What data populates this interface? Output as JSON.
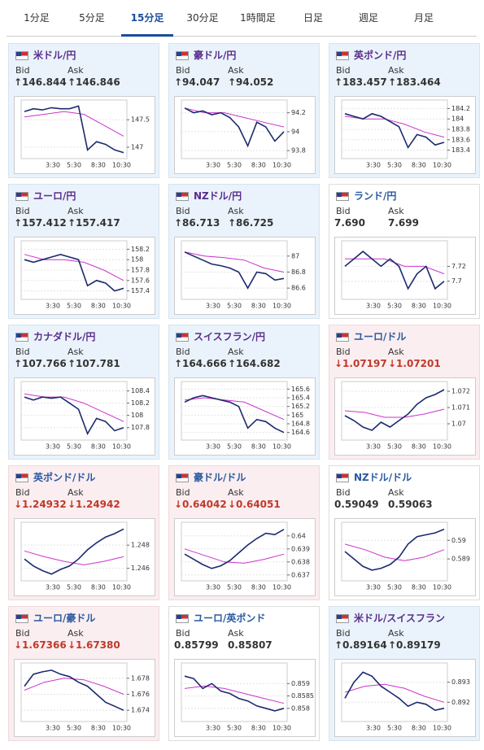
{
  "tabs": [
    "1分足",
    "5分足",
    "15分足",
    "30分足",
    "1時間足",
    "日足",
    "週足",
    "月足"
  ],
  "active_tab": 2,
  "labels": {
    "bid": "Bid",
    "ask": "Ask"
  },
  "time_labels": [
    "3:30",
    "5:30",
    "8:30",
    "10:30"
  ],
  "panels": [
    {
      "name": "米ドル/円",
      "status": "up",
      "bid": "↑146.844",
      "ask": "↑146.846",
      "ylim": [
        146.85,
        147.8
      ],
      "yticks": [
        147.5,
        147
      ],
      "price": [
        147.65,
        147.7,
        147.68,
        147.72,
        147.7,
        147.7,
        147.75,
        146.95,
        147.1,
        147.05,
        146.95,
        146.9
      ],
      "ma": [
        147.55,
        147.6,
        147.65,
        147.6,
        147.4,
        147.2
      ]
    },
    {
      "name": "豪ドル/円",
      "status": "up",
      "bid": "↑94.047",
      "ask": "↑94.052",
      "ylim": [
        93.75,
        94.3
      ],
      "yticks": [
        94.2,
        94,
        93.8
      ],
      "price": [
        94.25,
        94.2,
        94.22,
        94.18,
        94.2,
        94.15,
        94.05,
        93.85,
        94.1,
        94.05,
        93.9,
        94.0
      ],
      "ma": [
        94.25,
        94.2,
        94.2,
        94.15,
        94.1,
        94.05
      ]
    },
    {
      "name": "英ポンド/円",
      "status": "up",
      "bid": "↑183.457",
      "ask": "↑183.464",
      "ylim": [
        183.3,
        184.3
      ],
      "yticks": [
        184.2,
        184,
        183.8,
        183.6,
        183.4
      ],
      "price": [
        184.1,
        184.05,
        184.0,
        184.1,
        184.05,
        183.95,
        183.85,
        183.45,
        183.7,
        183.65,
        183.5,
        183.55
      ],
      "ma": [
        184.05,
        184.0,
        184.0,
        183.9,
        183.75,
        183.65
      ]
    },
    {
      "name": "ユーロ/円",
      "status": "up",
      "bid": "↑157.412",
      "ask": "↑157.417",
      "ylim": [
        157.3,
        158.3
      ],
      "yticks": [
        158.2,
        158,
        157.8,
        157.6,
        157.4
      ],
      "price": [
        158.0,
        157.95,
        158.0,
        158.05,
        158.1,
        158.05,
        158.0,
        157.5,
        157.6,
        157.55,
        157.4,
        157.45
      ],
      "ma": [
        158.1,
        158.0,
        158.0,
        157.95,
        157.8,
        157.6
      ]
    },
    {
      "name": "NZドル/円",
      "status": "up",
      "bid": "↑86.713",
      "ask": "↑86.725",
      "ylim": [
        86.5,
        87.15
      ],
      "yticks": [
        87,
        86.8,
        86.6
      ],
      "price": [
        87.05,
        87.0,
        86.95,
        86.9,
        86.88,
        86.85,
        86.8,
        86.6,
        86.8,
        86.78,
        86.7,
        86.72
      ],
      "ma": [
        87.05,
        87.0,
        86.98,
        86.95,
        86.85,
        86.8
      ]
    },
    {
      "name": "ランド/円",
      "status": "flat",
      "bid": "7.690",
      "ask": "7.699",
      "ylim": [
        7.68,
        7.75
      ],
      "yticks": [
        7.72,
        7.7
      ],
      "price": [
        7.72,
        7.73,
        7.74,
        7.73,
        7.72,
        7.73,
        7.72,
        7.69,
        7.71,
        7.72,
        7.69,
        7.7
      ],
      "ma": [
        7.73,
        7.73,
        7.73,
        7.72,
        7.72,
        7.71
      ]
    },
    {
      "name": "カナダドル/円",
      "status": "up",
      "bid": "↑107.766",
      "ask": "↑107.781",
      "ylim": [
        107.65,
        108.5
      ],
      "yticks": [
        108.4,
        108.2,
        108,
        107.8
      ],
      "price": [
        108.3,
        108.25,
        108.3,
        108.28,
        108.3,
        108.2,
        108.1,
        107.7,
        107.95,
        107.9,
        107.75,
        107.8
      ],
      "ma": [
        108.35,
        108.3,
        108.3,
        108.2,
        108.05,
        107.9
      ]
    },
    {
      "name": "スイスフラン/円",
      "status": "up",
      "bid": "↑164.666",
      "ask": "↑164.682",
      "ylim": [
        164.5,
        165.7
      ],
      "yticks": [
        165.6,
        165.4,
        165.2,
        165,
        164.8,
        164.6
      ],
      "price": [
        165.3,
        165.4,
        165.45,
        165.4,
        165.35,
        165.3,
        165.2,
        164.7,
        164.9,
        164.85,
        164.7,
        164.6
      ],
      "ma": [
        165.35,
        165.4,
        165.35,
        165.3,
        165.1,
        164.9
      ]
    },
    {
      "name": "ユーロ/ドル",
      "status": "down",
      "bid": "↓1.07197",
      "ask": "↓1.07201",
      "ylim": [
        1.0692,
        1.0724
      ],
      "yticks": [
        1.072,
        1.071,
        1.07
      ],
      "price": [
        1.0705,
        1.0702,
        1.0698,
        1.0696,
        1.0701,
        1.0698,
        1.0702,
        1.0706,
        1.0712,
        1.0716,
        1.0718,
        1.0721
      ],
      "ma": [
        1.0708,
        1.0707,
        1.0704,
        1.0704,
        1.0706,
        1.0709
      ]
    },
    {
      "name": "英ポンド/ドル",
      "status": "down",
      "bid": "↓1.24932",
      "ask": "↓1.24942",
      "ylim": [
        1.2452,
        1.2497
      ],
      "yticks": [
        1.248,
        1.246
      ],
      "price": [
        1.2468,
        1.2462,
        1.2458,
        1.2455,
        1.2459,
        1.2462,
        1.2468,
        1.2476,
        1.2482,
        1.2487,
        1.249,
        1.2494
      ],
      "ma": [
        1.2475,
        1.247,
        1.2466,
        1.2463,
        1.2466,
        1.247
      ]
    },
    {
      "name": "豪ドル/ドル",
      "status": "down",
      "bid": "↓0.64042",
      "ask": "↓0.64051",
      "ylim": [
        0.6368,
        0.6408
      ],
      "yticks": [
        0.64,
        0.639,
        0.638,
        0.637
      ],
      "price": [
        0.6386,
        0.6382,
        0.6378,
        0.6375,
        0.6377,
        0.6381,
        0.6387,
        0.6393,
        0.6398,
        0.6402,
        0.6401,
        0.6405
      ],
      "ma": [
        0.639,
        0.6385,
        0.638,
        0.6379,
        0.6382,
        0.6386
      ]
    },
    {
      "name": "NZドル/ドル",
      "status": "flat",
      "bid": "0.59049",
      "ask": "0.59063",
      "ylim": [
        0.588,
        0.5908
      ],
      "yticks": [
        0.59,
        0.589
      ],
      "price": [
        0.5894,
        0.589,
        0.5886,
        0.5884,
        0.5885,
        0.5887,
        0.5891,
        0.5898,
        0.5902,
        0.5903,
        0.5904,
        0.5906
      ],
      "ma": [
        0.5898,
        0.5895,
        0.5891,
        0.5889,
        0.5891,
        0.5895
      ]
    },
    {
      "name": "ユーロ/豪ドル",
      "status": "down",
      "bid": "↓1.67366",
      "ask": "↓1.67380",
      "ylim": [
        1.673,
        1.6795
      ],
      "yticks": [
        1.678,
        1.676,
        1.674
      ],
      "price": [
        1.677,
        1.6785,
        1.6788,
        1.679,
        1.6785,
        1.6782,
        1.6775,
        1.677,
        1.676,
        1.675,
        1.6745,
        1.674
      ],
      "ma": [
        1.6765,
        1.6775,
        1.678,
        1.6778,
        1.677,
        1.676
      ]
    },
    {
      "name": "ユーロ/英ポンド",
      "status": "flat",
      "bid": "0.85799",
      "ask": "0.85807",
      "ylim": [
        0.8576,
        0.8597
      ],
      "yticks": [
        0.859,
        0.8585,
        0.858
      ],
      "price": [
        0.8593,
        0.8592,
        0.8588,
        0.859,
        0.8587,
        0.8586,
        0.8584,
        0.8583,
        0.8581,
        0.858,
        0.8579,
        0.858
      ],
      "ma": [
        0.8588,
        0.8589,
        0.8588,
        0.8586,
        0.8584,
        0.8582
      ]
    },
    {
      "name": "米ドル/スイスフラン",
      "status": "up",
      "bid": "↑0.89164",
      "ask": "↑0.89179",
      "ylim": [
        0.8912,
        0.8938
      ],
      "yticks": [
        0.893,
        0.892
      ],
      "price": [
        0.8922,
        0.893,
        0.8935,
        0.8933,
        0.8928,
        0.8925,
        0.8922,
        0.8918,
        0.892,
        0.8919,
        0.8916,
        0.8917
      ],
      "ma": [
        0.8925,
        0.8928,
        0.8929,
        0.8927,
        0.8923,
        0.892
      ]
    }
  ]
}
